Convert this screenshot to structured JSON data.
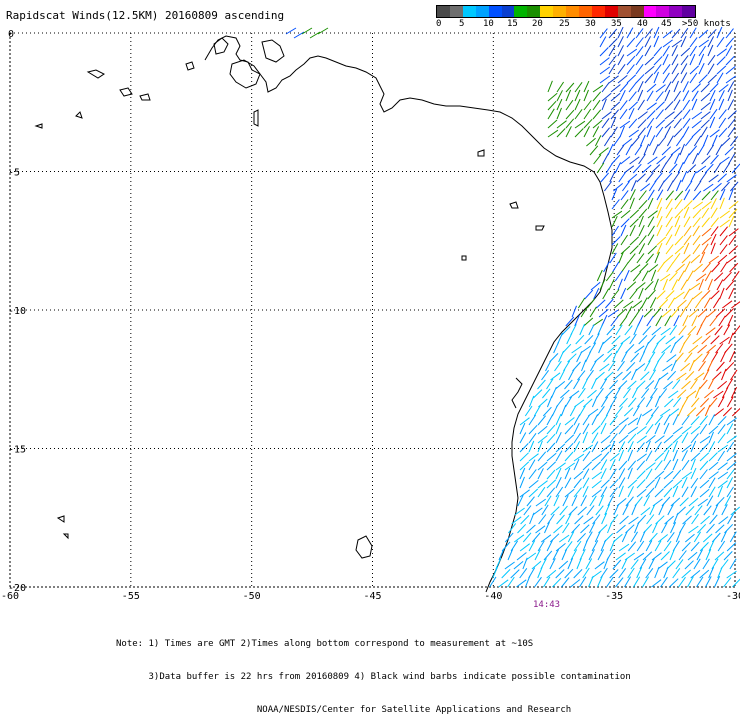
{
  "title": "Rapidscat Winds(12.5KM) 20160809 ascending",
  "scale": {
    "labels": [
      "0",
      "5",
      "10",
      "15",
      "20",
      "25",
      "30",
      "35",
      "40",
      "45",
      ">50 knots"
    ],
    "colors": [
      "#4b4b4b",
      "#6e6e6e",
      "#00c8ff",
      "#00a2ff",
      "#0050ff",
      "#0a3fd0",
      "#00b400",
      "#1a8f00",
      "#ffd200",
      "#ffb000",
      "#ff8c00",
      "#ff6400",
      "#ff2800",
      "#e00000",
      "#a05030",
      "#7a3a20",
      "#ff00ff",
      "#d000e0",
      "#9000c0",
      "#6000a0"
    ]
  },
  "map": {
    "lon_range": [
      -60,
      -30
    ],
    "lat_range": [
      -20,
      0
    ],
    "x_ticks": [
      "-60",
      "-55",
      "-50",
      "-45",
      "-40",
      "-35",
      "-30"
    ],
    "y_ticks": [
      "0",
      "-5",
      "-10",
      "-15",
      "-20"
    ]
  },
  "time_label": "14:43",
  "notes": [
    "Note: 1) Times are GMT 2)Times along bottom correspond to measurement at ~10S",
    "      3)Data buffer is 22 hrs from 20160809 4) Black wind barbs indicate possible contamination",
    "                          NOAA/NESDIS/Center for Satellite Applications and Research"
  ]
}
